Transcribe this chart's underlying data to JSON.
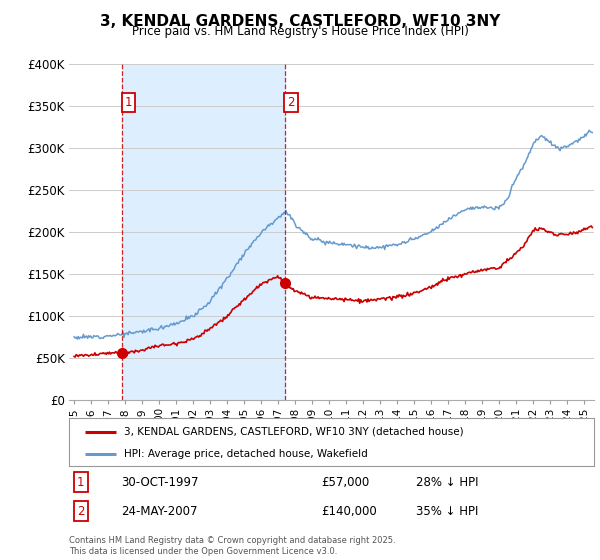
{
  "title": "3, KENDAL GARDENS, CASTLEFORD, WF10 3NY",
  "subtitle": "Price paid vs. HM Land Registry's House Price Index (HPI)",
  "legend_line1": "3, KENDAL GARDENS, CASTLEFORD, WF10 3NY (detached house)",
  "legend_line2": "HPI: Average price, detached house, Wakefield",
  "annotation1_label": "1",
  "annotation1_date": "30-OCT-1997",
  "annotation1_price": "£57,000",
  "annotation1_hpi": "28% ↓ HPI",
  "annotation2_label": "2",
  "annotation2_date": "24-MAY-2007",
  "annotation2_price": "£140,000",
  "annotation2_hpi": "35% ↓ HPI",
  "footer": "Contains HM Land Registry data © Crown copyright and database right 2025.\nThis data is licensed under the Open Government Licence v3.0.",
  "line_color_red": "#cc0000",
  "line_color_blue": "#6699cc",
  "shade_color": "#ddeeff",
  "annotation_box_color": "#cc0000",
  "background_color": "#ffffff",
  "grid_color": "#cccccc",
  "ylim": [
    0,
    400000
  ],
  "sale1_year": 1997.83,
  "sale1_price": 57000,
  "sale2_year": 2007.39,
  "sale2_price": 140000,
  "hpi_anchors_x": [
    1995,
    1996,
    1997,
    1998,
    1999,
    2000,
    2001,
    2002,
    2003,
    2004,
    2005,
    2006,
    2007,
    2007.5,
    2008,
    2009,
    2010,
    2011,
    2012,
    2013,
    2014,
    2015,
    2016,
    2017,
    2018,
    2019,
    2020,
    2020.5,
    2021,
    2021.5,
    2022,
    2022.5,
    2023,
    2023.5,
    2024,
    2024.5,
    2025.5
  ],
  "hpi_anchors_y": [
    75000,
    75500,
    77000,
    79000,
    82000,
    86000,
    92000,
    100000,
    118000,
    145000,
    175000,
    200000,
    218000,
    225000,
    210000,
    192000,
    188000,
    186000,
    182000,
    182000,
    185000,
    192000,
    200000,
    215000,
    228000,
    230000,
    228000,
    240000,
    265000,
    280000,
    305000,
    315000,
    308000,
    300000,
    302000,
    308000,
    320000
  ],
  "red_anchors_x": [
    1995,
    1996,
    1997,
    1997.83,
    1998.5,
    1999,
    2000,
    2001,
    2002,
    2003,
    2004,
    2005,
    2006,
    2007,
    2007.39,
    2008,
    2009,
    2010,
    2011,
    2012,
    2013,
    2014,
    2015,
    2016,
    2017,
    2018,
    2019,
    2020,
    2021,
    2021.5,
    2022,
    2022.5,
    2023,
    2023.5,
    2024,
    2024.5,
    2025.5
  ],
  "red_anchors_y": [
    53000,
    54000,
    56000,
    57000,
    58000,
    60000,
    65000,
    68000,
    73000,
    85000,
    100000,
    120000,
    138000,
    148000,
    140000,
    130000,
    122000,
    122000,
    120000,
    118000,
    120000,
    123000,
    127000,
    135000,
    145000,
    150000,
    155000,
    158000,
    175000,
    185000,
    202000,
    205000,
    200000,
    197000,
    198000,
    200000,
    207000
  ]
}
